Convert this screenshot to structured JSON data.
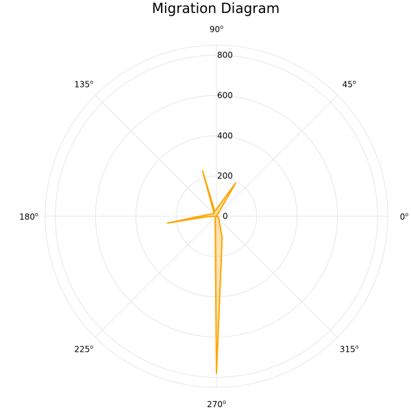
{
  "chart_data": {
    "type": "polar",
    "title": "Migration  Diagram",
    "angle_ticks": [
      {
        "value": "90",
        "deg": 90
      },
      {
        "value": "45",
        "deg": 45
      },
      {
        "value": "0",
        "deg": 0
      },
      {
        "value": "315",
        "deg": 315
      },
      {
        "value": "270",
        "deg": 270
      },
      {
        "value": "225",
        "deg": 225
      },
      {
        "value": "180",
        "deg": 180
      },
      {
        "value": "135",
        "deg": 135
      }
    ],
    "angle_unit": "o",
    "radial_ticks": [
      "0",
      "200",
      "400",
      "600",
      "800"
    ],
    "radial_max": 850,
    "grid": true,
    "series": [
      {
        "color": "#ffa500",
        "fill": "#ffa500",
        "fill_opacity": 0.3,
        "points": [
          {
            "theta": 0,
            "r": 0
          },
          {
            "theta": 60,
            "r": 190
          },
          {
            "theta": 110,
            "r": 25
          },
          {
            "theta": 107,
            "r": 235
          },
          {
            "theta": 130,
            "r": 18
          },
          {
            "theta": 170,
            "r": 45
          },
          {
            "theta": 188,
            "r": 245
          },
          {
            "theta": 183,
            "r": 50
          },
          {
            "theta": 180,
            "r": 12
          },
          {
            "theta": 215,
            "r": 8
          },
          {
            "theta": 270,
            "r": 780
          },
          {
            "theta": 285,
            "r": 110
          },
          {
            "theta": 340,
            "r": 10
          },
          {
            "theta": 0,
            "r": 0
          }
        ]
      }
    ]
  }
}
